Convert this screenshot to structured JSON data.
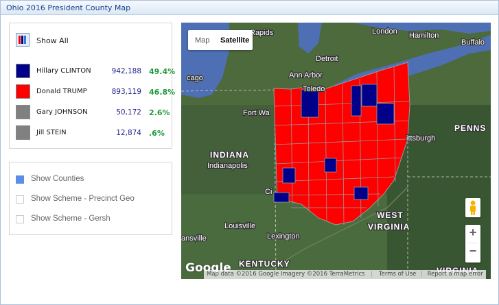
{
  "title": "Ohio 2016 President  County Map",
  "show_all": {
    "label": "Show All"
  },
  "candidates": [
    {
      "name": "Hillary CLINTON",
      "votes": "942,188",
      "pct": "49.4%",
      "color": "#00008b"
    },
    {
      "name": "Donald TRUMP",
      "votes": "893,119",
      "pct": "46.8%",
      "color": "#ff0000"
    },
    {
      "name": "Gary JOHNSON",
      "votes": "50,172",
      "pct": "2.6%",
      "color": "#808080"
    },
    {
      "name": "Jill STEIN",
      "votes": "12,874",
      "pct": ".6%",
      "color": "#808080"
    }
  ],
  "options": [
    {
      "label": "Show Counties",
      "checked": true
    },
    {
      "label": "Show Scheme - Precinct Geo",
      "checked": false
    },
    {
      "label": "Show Scheme - Gersh",
      "checked": false
    }
  ],
  "map": {
    "type_controls": {
      "map": "Map",
      "satellite": "Satellite"
    },
    "zoom": {
      "in": "+",
      "out": "−"
    },
    "pegman_icon": "pegman-icon",
    "google_logo": "Google",
    "attribution": "Map data ©2016 Google Imagery ©2016 TerraMetrics",
    "terms": "Terms of Use",
    "report": "Report a map error",
    "cities": {
      "rapids": "Rapids",
      "london": "London",
      "hamilton": "Hamilton",
      "buffalo": "Buffalo",
      "detroit": "Detroit",
      "ann_arbor": "Ann Arbor",
      "toledo": "Toledo",
      "chicago": "cago",
      "fort_wayne": "Fort Wa",
      "pittsburgh": "ittsburgh",
      "indianapolis": "Indianapolis",
      "cincinnati": "Ci",
      "louisville": "Louisville",
      "lexington": "Lexington",
      "evansville": "ansville",
      "kentucky": "KENTUCKY",
      "indiana": "INDIANA",
      "west_virginia_1": "WEST",
      "west_virginia_2": "VIRGINIA",
      "virginia": "VIRGINIA",
      "penns": "PENNS"
    }
  }
}
